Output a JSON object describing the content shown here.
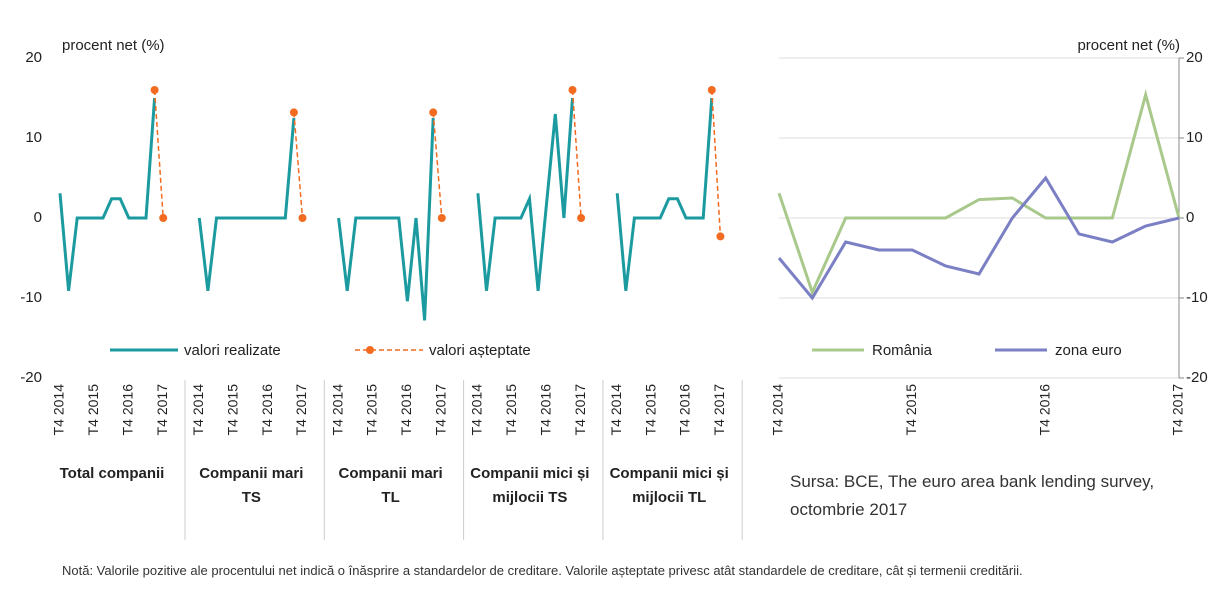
{
  "chart_data": [
    {
      "type": "line",
      "ylabel": "procent net (%)",
      "ylim": [
        -20,
        20
      ],
      "yticks": [
        -20,
        -10,
        0,
        10,
        20
      ],
      "grid": false,
      "categories": [
        "T4 2014",
        null,
        null,
        null,
        "T4 2015",
        null,
        null,
        null,
        "T4 2016",
        null,
        null,
        null,
        "T4 2017"
      ],
      "series": [
        {
          "name": "valori realizate",
          "color": "#1b9aa0",
          "dashed": false,
          "markers": false
        },
        {
          "name": "valori așteptate",
          "color": "#f26b21",
          "dashed": true,
          "markers": true
        }
      ],
      "groups": [
        {
          "label": "Total companii",
          "series_values": [
            [
              3.1,
              -9.1,
              0,
              0,
              0,
              0,
              2.4,
              2.4,
              0,
              0,
              0,
              15.0,
              null
            ],
            [
              null,
              null,
              null,
              null,
              null,
              null,
              null,
              null,
              null,
              null,
              null,
              16.0,
              0
            ]
          ]
        },
        {
          "label": "Companii mari TS",
          "series_values": [
            [
              0,
              -9.1,
              0,
              0,
              0,
              0,
              0,
              0,
              0,
              0,
              0,
              12.5,
              null
            ],
            [
              null,
              null,
              null,
              null,
              null,
              null,
              null,
              null,
              null,
              null,
              null,
              13.2,
              0
            ]
          ]
        },
        {
          "label": "Companii mari TL",
          "series_values": [
            [
              0,
              -9.1,
              0,
              0,
              0,
              0,
              0,
              0,
              -10.4,
              0,
              -12.8,
              12.5,
              null
            ],
            [
              null,
              null,
              null,
              null,
              null,
              null,
              null,
              null,
              null,
              null,
              null,
              13.2,
              0
            ]
          ]
        },
        {
          "label": "Companii mici și mijlocii TS",
          "series_values": [
            [
              3.1,
              -9.1,
              0,
              0,
              0,
              0,
              2.4,
              -9.1,
              2.0,
              13.0,
              0,
              15.0,
              null
            ],
            [
              null,
              null,
              null,
              null,
              null,
              null,
              null,
              null,
              null,
              null,
              null,
              16.0,
              0
            ]
          ]
        },
        {
          "label": "Companii mici și mijlocii TL",
          "series_values": [
            [
              3.1,
              -9.1,
              0,
              0,
              0,
              0,
              2.4,
              2.4,
              0,
              0,
              0,
              15.0,
              null
            ],
            [
              null,
              null,
              null,
              null,
              null,
              null,
              null,
              null,
              null,
              null,
              null,
              16.0,
              -2.3
            ]
          ]
        }
      ]
    },
    {
      "type": "line",
      "ylabel": "procent net (%)",
      "ylim": [
        -20,
        20
      ],
      "yticks": [
        -20,
        -10,
        0,
        10,
        20
      ],
      "grid": true,
      "y_axis_side": "right",
      "categories": [
        "T4 2014",
        null,
        null,
        null,
        "T4 2015",
        null,
        null,
        null,
        "T4 2016",
        null,
        null,
        null,
        "T4 2017"
      ],
      "series": [
        {
          "name": "România",
          "color": "#a9c98c",
          "values": [
            3.1,
            -9.3,
            0,
            0,
            0,
            0,
            2.3,
            2.5,
            0,
            0,
            0,
            15.4,
            0
          ]
        },
        {
          "name": "zona euro",
          "color": "#7b7fc4",
          "values": [
            -5,
            -10,
            -3,
            -4,
            -4,
            -6,
            -7,
            0,
            5,
            -2,
            -3,
            -1,
            0
          ]
        }
      ]
    }
  ],
  "source": "Sursa: BCE, The euro area bank lending survey, octombrie 2017",
  "note": "Notă: Valorile pozitive ale procentului net indică o înăsprire a standardelor de creditare. Valorile așteptate privesc atât standardele de creditare, cât și termenii creditării."
}
